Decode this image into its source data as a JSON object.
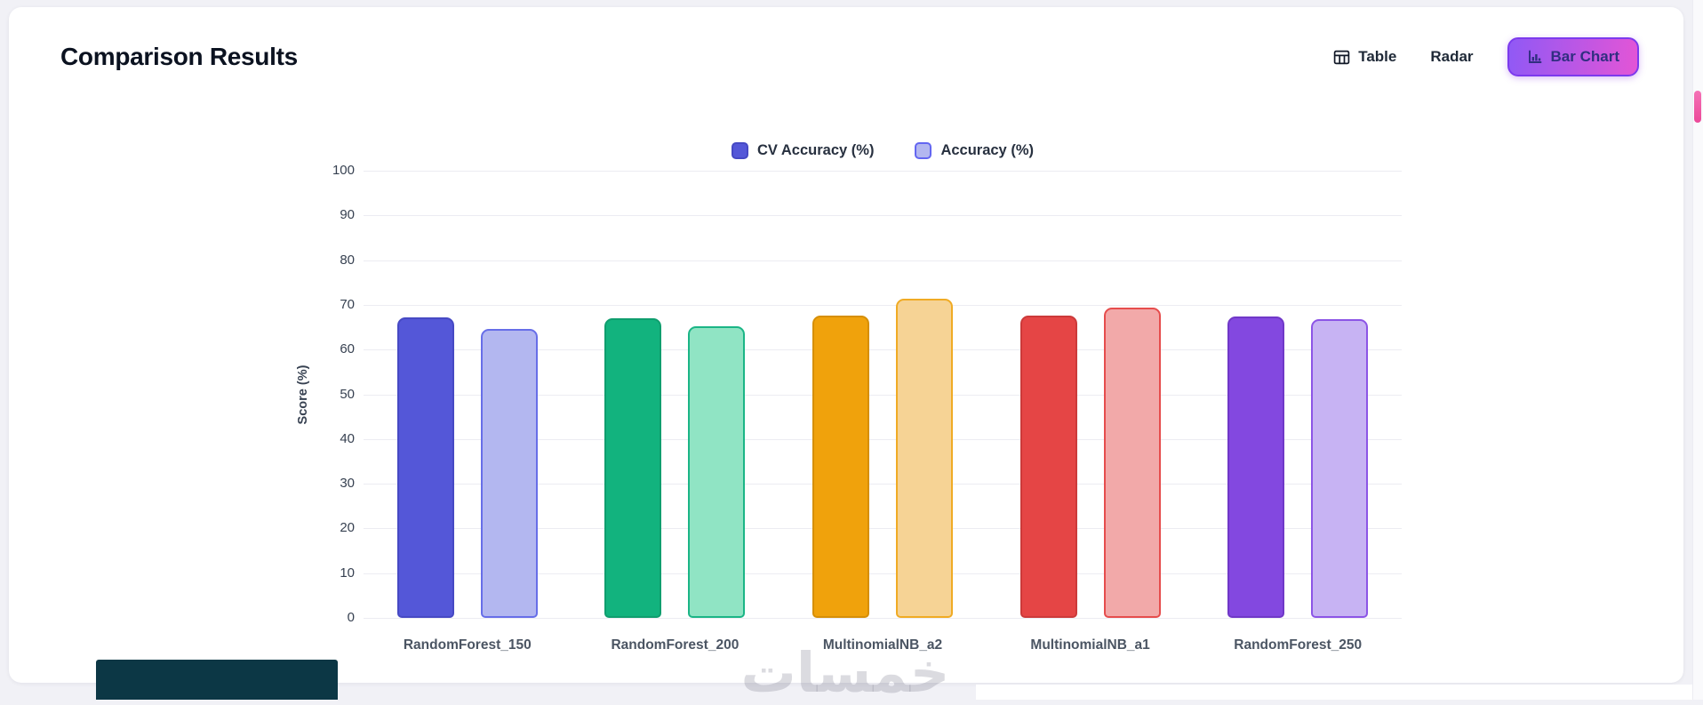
{
  "header": {
    "title": "Comparison Results",
    "views": [
      {
        "label": "Table",
        "icon": "table-icon",
        "active": false
      },
      {
        "label": "Radar",
        "icon": null,
        "active": false
      },
      {
        "label": "Bar Chart",
        "icon": "bar-chart-icon",
        "active": true
      }
    ]
  },
  "legend": {
    "items": [
      {
        "label": "CV Accuracy (%)",
        "fill": "#5457d8",
        "border": "#4649c4"
      },
      {
        "label": "Accuracy (%)",
        "fill": "#b3b7f0",
        "border": "#6366f1"
      }
    ]
  },
  "chart_data": {
    "type": "bar",
    "title": "",
    "categories": [
      "RandomForest_150",
      "RandomForest_200",
      "MultinomialNB_a2",
      "MultinomialNB_a1",
      "RandomForest_250"
    ],
    "series": [
      {
        "name": "CV Accuracy (%)",
        "values": [
          67.2,
          67.0,
          67.6,
          67.5,
          67.3
        ]
      },
      {
        "name": "Accuracy (%)",
        "values": [
          64.6,
          65.3,
          71.4,
          69.3,
          66.7
        ]
      }
    ],
    "xlabel": "",
    "ylabel": "Score (%)",
    "ylim": [
      0,
      100
    ],
    "ytick_step": 10,
    "grid": true,
    "legend_position": "top",
    "bar_colors": [
      {
        "main": "#5457d8",
        "main_border": "#4649c4",
        "light": "#b3b7f0",
        "light_border": "#676ee8"
      },
      {
        "main": "#12b37e",
        "main_border": "#0f9e6e",
        "light": "#90e4c4",
        "light_border": "#1bb586"
      },
      {
        "main": "#f0a20c",
        "main_border": "#d68f07",
        "light": "#f6d395",
        "light_border": "#f0ab24"
      },
      {
        "main": "#e54545",
        "main_border": "#cc3a3a",
        "light": "#f2a9a9",
        "light_border": "#e64d4d"
      },
      {
        "main": "#8348e0",
        "main_border": "#7038c8",
        "light": "#c7b3f3",
        "light_border": "#8c55e6"
      }
    ]
  },
  "watermark": {
    "text": "خمسات"
  },
  "scrollbar": {
    "thumb_color": "#ec4899"
  }
}
